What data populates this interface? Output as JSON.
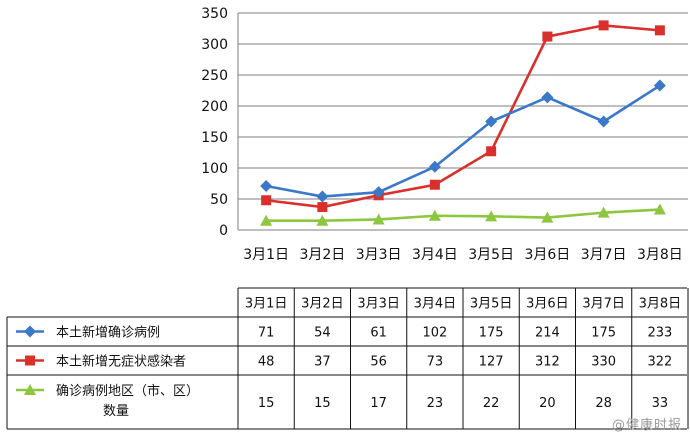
{
  "chart_data": {
    "type": "line",
    "categories": [
      "3月1日",
      "3月2日",
      "3月3日",
      "3月4日",
      "3月5日",
      "3月6日",
      "3月7日",
      "3月8日"
    ],
    "ylim": [
      0,
      350
    ],
    "yticks": [
      0,
      50,
      100,
      150,
      200,
      250,
      300,
      350
    ],
    "grid": true,
    "legend": "table-left",
    "series": [
      {
        "name": "本土新增确诊病例",
        "values": [
          71,
          54,
          61,
          102,
          175,
          214,
          175,
          233
        ],
        "color": "#3b78c8",
        "marker": "diamond"
      },
      {
        "name": "本土新增无症状感染者",
        "values": [
          48,
          37,
          56,
          73,
          127,
          312,
          330,
          322
        ],
        "color": "#d9302c",
        "marker": "square"
      },
      {
        "name_lines": [
          "确诊病例地区（市、区）",
          "数量"
        ],
        "values": [
          15,
          15,
          17,
          23,
          22,
          20,
          28,
          33
        ],
        "color": "#8dc63f",
        "marker": "triangle"
      }
    ]
  },
  "watermark": "@健康时报"
}
